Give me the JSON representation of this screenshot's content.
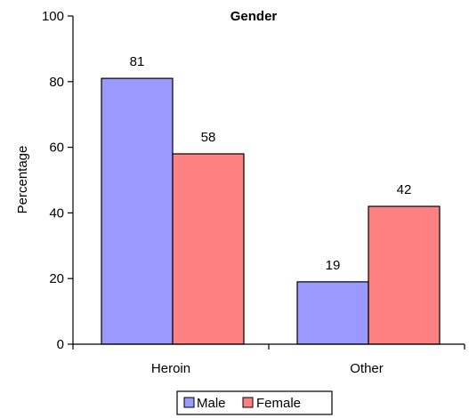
{
  "chart_data": {
    "type": "bar",
    "title": "Gender",
    "xlabel": "",
    "ylabel": "Percentage",
    "categories": [
      "Heroin",
      "Other"
    ],
    "series": [
      {
        "name": "Male",
        "values": [
          81,
          19
        ],
        "color": "#9999FF"
      },
      {
        "name": "Female",
        "values": [
          58,
          42
        ],
        "color": "#FF8080"
      }
    ],
    "ylim": [
      0,
      100
    ],
    "yticks": [
      0,
      20,
      40,
      60,
      80,
      100
    ],
    "grid": false,
    "legend_position": "bottom"
  }
}
